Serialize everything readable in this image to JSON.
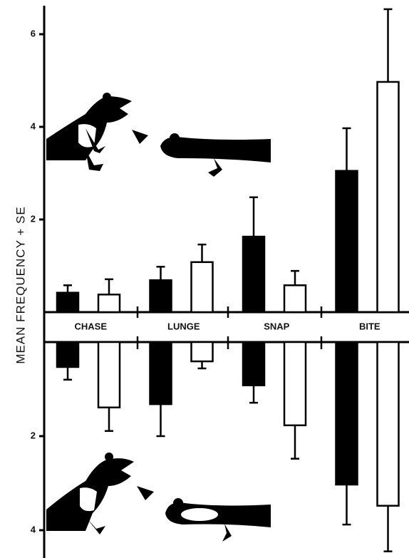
{
  "chart_data": [
    {
      "type": "bar",
      "ylabel": "MEAN FREQUENCY + SE",
      "categories": [
        "CHASE",
        "LUNGE",
        "SNAP",
        "BITE"
      ],
      "ylim": [
        0,
        6.6
      ],
      "yticks": [
        2,
        4,
        6
      ],
      "series": [
        {
          "color": "#000000",
          "values": [
            0.42,
            0.69,
            1.63,
            3.05
          ],
          "errors": [
            0.16,
            0.29,
            0.85,
            0.92
          ]
        },
        {
          "color": "#ffffff",
          "values": [
            0.38,
            1.08,
            0.58,
            4.97
          ],
          "errors": [
            0.33,
            0.38,
            0.31,
            1.57
          ]
        }
      ]
    },
    {
      "type": "bar",
      "ylim": [
        0,
        4.5
      ],
      "yticks": [
        2,
        4
      ],
      "inverted": true,
      "series": [
        {
          "color": "#000000",
          "values": [
            0.53,
            1.32,
            0.92,
            3.03
          ],
          "errors": [
            0.27,
            0.68,
            0.37,
            0.85
          ]
        },
        {
          "color": "#ffffff",
          "values": [
            1.39,
            0.41,
            1.77,
            3.48
          ],
          "errors": [
            0.5,
            0.15,
            0.71,
            0.97
          ]
        }
      ]
    }
  ]
}
